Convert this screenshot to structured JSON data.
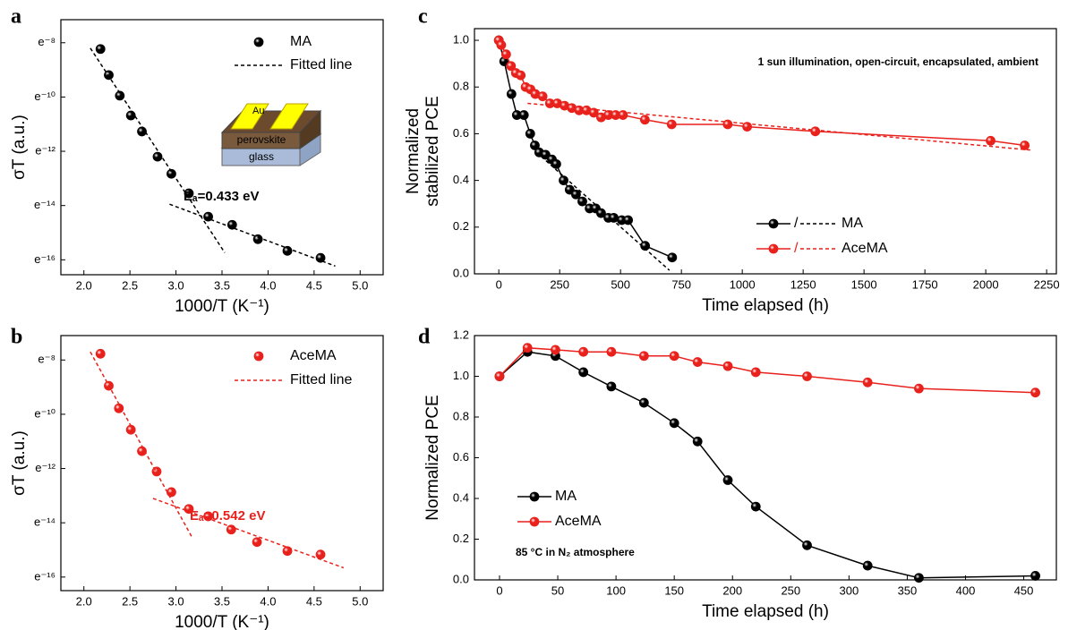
{
  "chart_data": [
    {
      "type": "scatter",
      "label": "a",
      "xlabel": "1000/T (K⁻¹)",
      "ylabel": "σT (a.u.)",
      "xlim": [
        1.75,
        5.25
      ],
      "ylim": [
        -16.55,
        -7.15
      ],
      "xticks": [
        {
          "value": 2,
          "label": "2.0"
        },
        2.5,
        {
          "value": 3,
          "label": "3.0"
        },
        3.5,
        {
          "value": 4,
          "label": "4.0"
        },
        4.5,
        {
          "value": 5,
          "label": "5.0"
        }
      ],
      "yticks": [
        {
          "value": -8,
          "label": "e⁻⁸"
        },
        {
          "value": -10,
          "label": "e⁻¹⁰"
        },
        {
          "value": -12,
          "label": "e⁻¹²"
        },
        {
          "value": -14,
          "label": "e⁻¹⁴"
        },
        {
          "value": -16,
          "label": "e⁻¹⁶"
        }
      ],
      "series": [
        {
          "name": "MA",
          "color": "#000000",
          "x": [
            2.18,
            2.27,
            2.39,
            2.51,
            2.63,
            2.8,
            2.95,
            3.14,
            3.35,
            3.61,
            3.89,
            4.21,
            4.57
          ],
          "values": [
            -8.23,
            -9.19,
            -9.95,
            -10.68,
            -11.27,
            -12.2,
            -12.83,
            -13.55,
            -14.41,
            -14.71,
            -15.24,
            -15.67,
            -15.93
          ]
        },
        {
          "name": "Fitted line",
          "color": "#000000",
          "lines": [
            {
              "x": [
                2.07,
                3.53
              ],
              "values": [
                -8.2,
                -15.74
              ]
            },
            {
              "x": [
                2.93,
                4.73
              ],
              "values": [
                -13.95,
                -16.23
              ]
            }
          ]
        }
      ],
      "annotation": "Eₐ=0.433 eV",
      "annotation_color": "#000000",
      "inset_labels": [
        "Au",
        "perovskite",
        "glass"
      ]
    },
    {
      "type": "scatter",
      "label": "b",
      "xlabel": "1000/T (K⁻¹)",
      "ylabel": "σT (a.u.)",
      "xlim": [
        1.75,
        5.25
      ],
      "ylim": [
        -16.5,
        -7.1
      ],
      "xticks": [
        {
          "value": 2,
          "label": "2.0"
        },
        2.5,
        {
          "value": 3,
          "label": "3.0"
        },
        3.5,
        {
          "value": 4,
          "label": "4.0"
        },
        4.5,
        {
          "value": 5,
          "label": "5.0"
        }
      ],
      "yticks": [
        {
          "value": -8,
          "label": "e⁻⁸"
        },
        {
          "value": -10,
          "label": "e⁻¹⁰"
        },
        {
          "value": -12,
          "label": "e⁻¹²"
        },
        {
          "value": -14,
          "label": "e⁻¹⁴"
        },
        {
          "value": -16,
          "label": "e⁻¹⁶"
        }
      ],
      "series": [
        {
          "name": "AceMA",
          "color": "#e8211c",
          "x": [
            2.18,
            2.27,
            2.38,
            2.51,
            2.63,
            2.79,
            2.95,
            3.14,
            3.35,
            3.6,
            3.88,
            4.21,
            4.57
          ],
          "values": [
            -7.77,
            -8.95,
            -9.78,
            -10.57,
            -11.36,
            -12.11,
            -12.87,
            -13.49,
            -13.76,
            -14.25,
            -14.71,
            -15.04,
            -15.17
          ]
        },
        {
          "name": "Fitted line",
          "color": "#e8211c",
          "lines": [
            {
              "x": [
                2.07,
                3.17
              ],
              "values": [
                -7.7,
                -14.51
              ]
            },
            {
              "x": [
                2.75,
                4.82
              ],
              "values": [
                -13.1,
                -15.66
              ]
            }
          ]
        }
      ],
      "annotation": "Eₐ=0.542 eV",
      "annotation_color": "#e8211c"
    },
    {
      "type": "line",
      "label": "c",
      "xlabel": "Time elapsed (h)",
      "ylabel": [
        "Normalized",
        "stabilized PCE"
      ],
      "xlim": [
        -100,
        2290
      ],
      "ylim": [
        0,
        1.05
      ],
      "xticks": [
        0,
        250,
        500,
        750,
        1000,
        1250,
        1500,
        1750,
        2000,
        2250
      ],
      "yticks": [
        {
          "value": 0,
          "label": "0.0"
        },
        0.2,
        0.4,
        0.6,
        0.8,
        {
          "value": 1,
          "label": "1.0"
        }
      ],
      "legend_separator": "/",
      "series": [
        {
          "name": "MA",
          "color": "#000000",
          "x": [
            0,
            22,
            52,
            74,
            103,
            129,
            148,
            166,
            192,
            218,
            236,
            266,
            291,
            317,
            343,
            373,
            398,
            420,
            450,
            472,
            505,
            531,
            601,
            712
          ],
          "values": [
            1.0,
            0.91,
            0.77,
            0.68,
            0.68,
            0.6,
            0.55,
            0.52,
            0.51,
            0.49,
            0.47,
            0.4,
            0.36,
            0.34,
            0.31,
            0.28,
            0.28,
            0.26,
            0.24,
            0.24,
            0.23,
            0.23,
            0.12,
            0.07
          ],
          "fit": {
            "x": [
              155,
              701
            ],
            "values": [
              0.52,
              0.015
            ]
          }
        },
        {
          "name": "AceMA",
          "color": "#e8211c",
          "x": [
            0,
            10,
            30,
            50,
            70,
            90,
            110,
            130,
            150,
            180,
            210,
            240,
            270,
            300,
            330,
            360,
            390,
            420,
            450,
            480,
            510,
            600,
            710,
            940,
            1020,
            1300,
            2020,
            2160
          ],
          "values": [
            1.0,
            0.98,
            0.94,
            0.89,
            0.86,
            0.85,
            0.8,
            0.79,
            0.77,
            0.76,
            0.73,
            0.73,
            0.72,
            0.71,
            0.7,
            0.7,
            0.69,
            0.67,
            0.68,
            0.68,
            0.68,
            0.66,
            0.64,
            0.64,
            0.63,
            0.61,
            0.57,
            0.55
          ],
          "fit": {
            "x": [
              118,
              2184
            ],
            "values": [
              0.73,
              0.53
            ]
          }
        }
      ],
      "annotation": "1 sun illumination, open-circuit, encapsulated, ambient",
      "annotation_color": "#000000"
    },
    {
      "type": "line",
      "label": "d",
      "xlabel": "Time elapsed (h)",
      "ylabel": "Normalized PCE",
      "xlim": [
        -21.5,
        478
      ],
      "ylim": [
        0,
        1.2
      ],
      "xticks": [
        0,
        50,
        100,
        150,
        200,
        250,
        300,
        350,
        400,
        450
      ],
      "yticks": [
        {
          "value": 0,
          "label": "0.0"
        },
        0.2,
        0.4,
        0.6,
        0.8,
        {
          "value": 1,
          "label": "1.0"
        },
        1.2
      ],
      "series": [
        {
          "name": "MA",
          "color": "#000000",
          "x": [
            0,
            24,
            48,
            72,
            96,
            124,
            150,
            170,
            196,
            220,
            264,
            316,
            360,
            460
          ],
          "values": [
            1.0,
            1.12,
            1.1,
            1.02,
            0.95,
            0.87,
            0.77,
            0.68,
            0.49,
            0.36,
            0.17,
            0.07,
            0.01,
            0.02
          ]
        },
        {
          "name": "AceMA",
          "color": "#e8211c",
          "x": [
            0,
            24,
            48,
            72,
            96,
            124,
            150,
            170,
            196,
            220,
            264,
            316,
            360,
            460
          ],
          "values": [
            1.0,
            1.14,
            1.13,
            1.12,
            1.12,
            1.1,
            1.1,
            1.07,
            1.05,
            1.02,
            1.0,
            0.97,
            0.94,
            0.92
          ]
        }
      ],
      "annotation": "85 °C in N₂ atmosphere",
      "annotation_color": "#000000"
    }
  ]
}
